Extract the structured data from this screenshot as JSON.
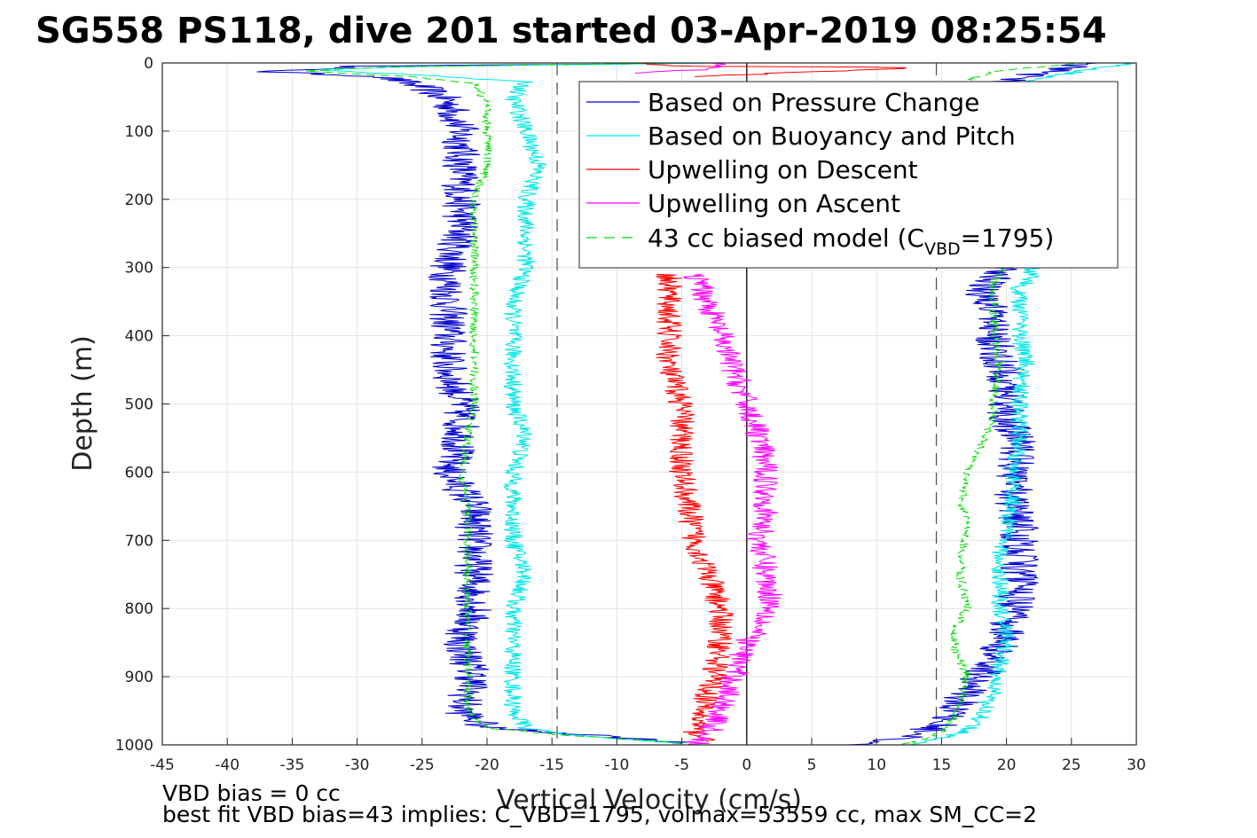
{
  "chart_data": {
    "type": "line",
    "title": "SG558 PS118, dive 201 started 03-Apr-2019 08:25:54",
    "xlabel": "Vertical Velocity (cm/s)",
    "ylabel": "Depth (m)",
    "xlim": [
      -45,
      30
    ],
    "ylim": [
      0,
      1000
    ],
    "y_reversed": true,
    "grid": true,
    "legend_placement": "top-right",
    "x_ticks": [
      "-45",
      "-40",
      "-35",
      "-30",
      "-25",
      "-20",
      "-15",
      "-10",
      "-5",
      "0",
      "5",
      "10",
      "15",
      "20",
      "25",
      "30"
    ],
    "y_ticks": [
      "0",
      "100",
      "200",
      "300",
      "400",
      "500",
      "600",
      "700",
      "800",
      "900",
      "1000"
    ],
    "reference_lines": [
      {
        "x": -14.6,
        "style": "dashed",
        "color": "#555555"
      },
      {
        "x": 0,
        "style": "solid",
        "color": "#000000"
      },
      {
        "x": 14.6,
        "style": "dashed",
        "color": "#555555"
      }
    ],
    "series": [
      {
        "name": "Based on Pressure Change",
        "color": "#0000cc",
        "style": "solid",
        "noise": 1.5,
        "segments": [
          [
            [
              -2,
              0
            ],
            [
              -30,
              5
            ],
            [
              -37,
              13
            ],
            [
              -28,
              20
            ],
            [
              -25,
              35
            ],
            [
              -23,
              55
            ],
            [
              -22,
              100
            ],
            [
              -22,
              200
            ],
            [
              -22,
              250
            ],
            [
              -23,
              300
            ],
            [
              -23,
              400
            ],
            [
              -23,
              450
            ],
            [
              -22,
              500
            ],
            [
              -22,
              550
            ],
            [
              -23,
              600
            ],
            [
              -21,
              650
            ],
            [
              -21,
              700
            ],
            [
              -21,
              750
            ],
            [
              -21,
              800
            ],
            [
              -22,
              850
            ],
            [
              -21,
              900
            ],
            [
              -22,
              950
            ],
            [
              -20,
              975
            ],
            [
              -12,
              985
            ],
            [
              -6,
              995
            ],
            [
              -5,
              998
            ]
          ],
          [
            [
              9,
              1000
            ],
            [
              13,
              985
            ],
            [
              15,
              970
            ],
            [
              16,
              950
            ],
            [
              17,
              920
            ],
            [
              18,
              900
            ],
            [
              19,
              870
            ],
            [
              20,
              840
            ],
            [
              20.5,
              800
            ],
            [
              21,
              760
            ],
            [
              21,
              720
            ],
            [
              21,
              680
            ],
            [
              20.5,
              640
            ],
            [
              20.5,
              600
            ],
            [
              21,
              560
            ],
            [
              20,
              520
            ],
            [
              20,
              480
            ],
            [
              19.5,
              440
            ],
            [
              19,
              400
            ],
            [
              19,
              360
            ],
            [
              18,
              330
            ],
            [
              19,
              315
            ],
            [
              20,
              305
            ],
            [
              20,
              298
            ]
          ],
          [
            [
              19,
              30
            ],
            [
              22,
              18
            ],
            [
              24,
              8
            ],
            [
              27,
              0
            ]
          ]
        ]
      },
      {
        "name": "Based on Buoyancy and Pitch",
        "color": "#00e5e5",
        "style": "solid",
        "noise": 0.7,
        "segments": [
          [
            [
              -2,
              0
            ],
            [
              -25,
              5
            ],
            [
              -33,
              10
            ],
            [
              -25,
              18
            ],
            [
              -17,
              28
            ],
            [
              -18,
              50
            ],
            [
              -17,
              100
            ],
            [
              -16,
              150
            ],
            [
              -17,
              200
            ],
            [
              -17,
              250
            ],
            [
              -17,
              300
            ],
            [
              -18,
              350
            ],
            [
              -18,
              400
            ],
            [
              -18,
              450
            ],
            [
              -18,
              500
            ],
            [
              -17,
              550
            ],
            [
              -18,
              600
            ],
            [
              -18,
              650
            ],
            [
              -18,
              700
            ],
            [
              -17,
              750
            ],
            [
              -18,
              800
            ],
            [
              -18,
              850
            ],
            [
              -18,
              900
            ],
            [
              -18,
              950
            ],
            [
              -17,
              975
            ],
            [
              -14,
              985
            ],
            [
              -8,
              993
            ],
            [
              -5,
              998
            ]
          ],
          [
            [
              12,
              1000
            ],
            [
              15,
              990
            ],
            [
              17,
              980
            ],
            [
              18,
              960
            ],
            [
              19,
              920
            ],
            [
              19.5,
              880
            ],
            [
              20,
              840
            ],
            [
              19.5,
              800
            ],
            [
              19.5,
              760
            ],
            [
              19.5,
              720
            ],
            [
              20,
              680
            ],
            [
              20.5,
              640
            ],
            [
              20.5,
              600
            ],
            [
              21,
              560
            ],
            [
              21,
              520
            ],
            [
              21,
              480
            ],
            [
              21.5,
              440
            ],
            [
              21,
              400
            ],
            [
              21,
              360
            ],
            [
              21,
              330
            ],
            [
              22,
              315
            ],
            [
              22,
              298
            ]
          ],
          [
            [
              21,
              30
            ],
            [
              24,
              18
            ],
            [
              27,
              8
            ],
            [
              30,
              0
            ]
          ]
        ]
      },
      {
        "name": "Upwelling on Descent",
        "color": "#ff0000",
        "style": "solid",
        "noise": 1.0,
        "segments": [
          [
            [
              -9,
              0
            ],
            [
              -5,
              5
            ],
            [
              10,
              6
            ],
            [
              13,
              7
            ],
            [
              -4,
              20
            ]
          ],
          [
            [
              -6,
              310
            ],
            [
              -6,
              350
            ],
            [
              -6,
              400
            ],
            [
              -6,
              450
            ],
            [
              -5,
              500
            ],
            [
              -5,
              550
            ],
            [
              -5,
              600
            ],
            [
              -4.5,
              650
            ],
            [
              -4,
              700
            ],
            [
              -3,
              750
            ],
            [
              -2,
              800
            ],
            [
              -2,
              850
            ],
            [
              -2.5,
              900
            ],
            [
              -3.5,
              950
            ],
            [
              -4,
              980
            ],
            [
              -3,
              995
            ]
          ]
        ]
      },
      {
        "name": "Upwelling on Ascent",
        "color": "#ff00ff",
        "style": "solid",
        "noise": 1.0,
        "segments": [
          [
            [
              -8,
              15
            ],
            [
              -4,
              10
            ],
            [
              -2,
              5
            ],
            [
              -3,
              0
            ]
          ],
          [
            [
              -4,
              310
            ],
            [
              -3,
              350
            ],
            [
              -2,
              400
            ],
            [
              -1,
              450
            ],
            [
              0,
              500
            ],
            [
              1,
              550
            ],
            [
              1.5,
              600
            ],
            [
              1.5,
              650
            ],
            [
              1,
              700
            ],
            [
              1.5,
              750
            ],
            [
              2,
              800
            ],
            [
              0,
              850
            ],
            [
              -1,
              900
            ],
            [
              -2,
              950
            ],
            [
              -3,
              985
            ],
            [
              -4,
              1000
            ]
          ]
        ]
      },
      {
        "name": "43 cc biased model (C_VBD=1795)",
        "color": "#00dd00",
        "style": "dashed",
        "noise": 0.35,
        "segments": [
          [
            [
              -5,
              0
            ],
            [
              -28,
              6
            ],
            [
              -34,
              12
            ],
            [
              -26,
              20
            ],
            [
              -21,
              30
            ],
            [
              -20,
              60
            ],
            [
              -20,
              100
            ],
            [
              -20,
              150
            ],
            [
              -21,
              200
            ],
            [
              -21,
              250
            ],
            [
              -21,
              300
            ],
            [
              -21,
              350
            ],
            [
              -21,
              400
            ],
            [
              -21,
              450
            ],
            [
              -21,
              500
            ],
            [
              -21.5,
              550
            ],
            [
              -22,
              600
            ],
            [
              -21.5,
              650
            ],
            [
              -21.5,
              700
            ],
            [
              -21.5,
              750
            ],
            [
              -21.5,
              800
            ],
            [
              -21.5,
              850
            ],
            [
              -21.5,
              900
            ],
            [
              -21.5,
              950
            ],
            [
              -20,
              975
            ],
            [
              -14,
              986
            ],
            [
              -7,
              994
            ],
            [
              -5,
              998
            ]
          ],
          [
            [
              12,
              1000
            ],
            [
              14,
              990
            ],
            [
              15,
              980
            ],
            [
              16,
              960
            ],
            [
              16.5,
              930
            ],
            [
              17,
              900
            ],
            [
              16,
              860
            ],
            [
              16,
              830
            ],
            [
              17,
              800
            ],
            [
              16.5,
              760
            ],
            [
              16.5,
              720
            ],
            [
              17,
              680
            ],
            [
              16.5,
              640
            ],
            [
              17,
              600
            ],
            [
              18,
              560
            ],
            [
              19,
              520
            ],
            [
              19,
              480
            ],
            [
              19.5,
              440
            ],
            [
              19,
              400
            ],
            [
              19,
              360
            ],
            [
              19,
              320
            ],
            [
              20,
              298
            ]
          ],
          [
            [
              17,
              25
            ],
            [
              19,
              12
            ],
            [
              23,
              5
            ],
            [
              26,
              0
            ]
          ]
        ]
      }
    ],
    "legend": {
      "entries": [
        {
          "text": "Based on Pressure Change",
          "color": "#0000cc",
          "style": "solid"
        },
        {
          "text": "Based on Buoyancy and Pitch",
          "color": "#00e5e5",
          "style": "solid"
        },
        {
          "text": "Upwelling on Descent",
          "color": "#ff0000",
          "style": "solid"
        },
        {
          "text": "Upwelling on Ascent",
          "color": "#ff00ff",
          "style": "solid"
        },
        {
          "text_main": "43 cc biased model (C",
          "text_sub": "VBD",
          "text_tail": "=1795)",
          "color": "#00dd00",
          "style": "dashed"
        }
      ]
    },
    "annotations": [
      "VBD bias = 0 cc",
      "best fit VBD bias=43 implies: C_VBD=1795, volmax=53559 cc, max SM_CC=2"
    ]
  }
}
